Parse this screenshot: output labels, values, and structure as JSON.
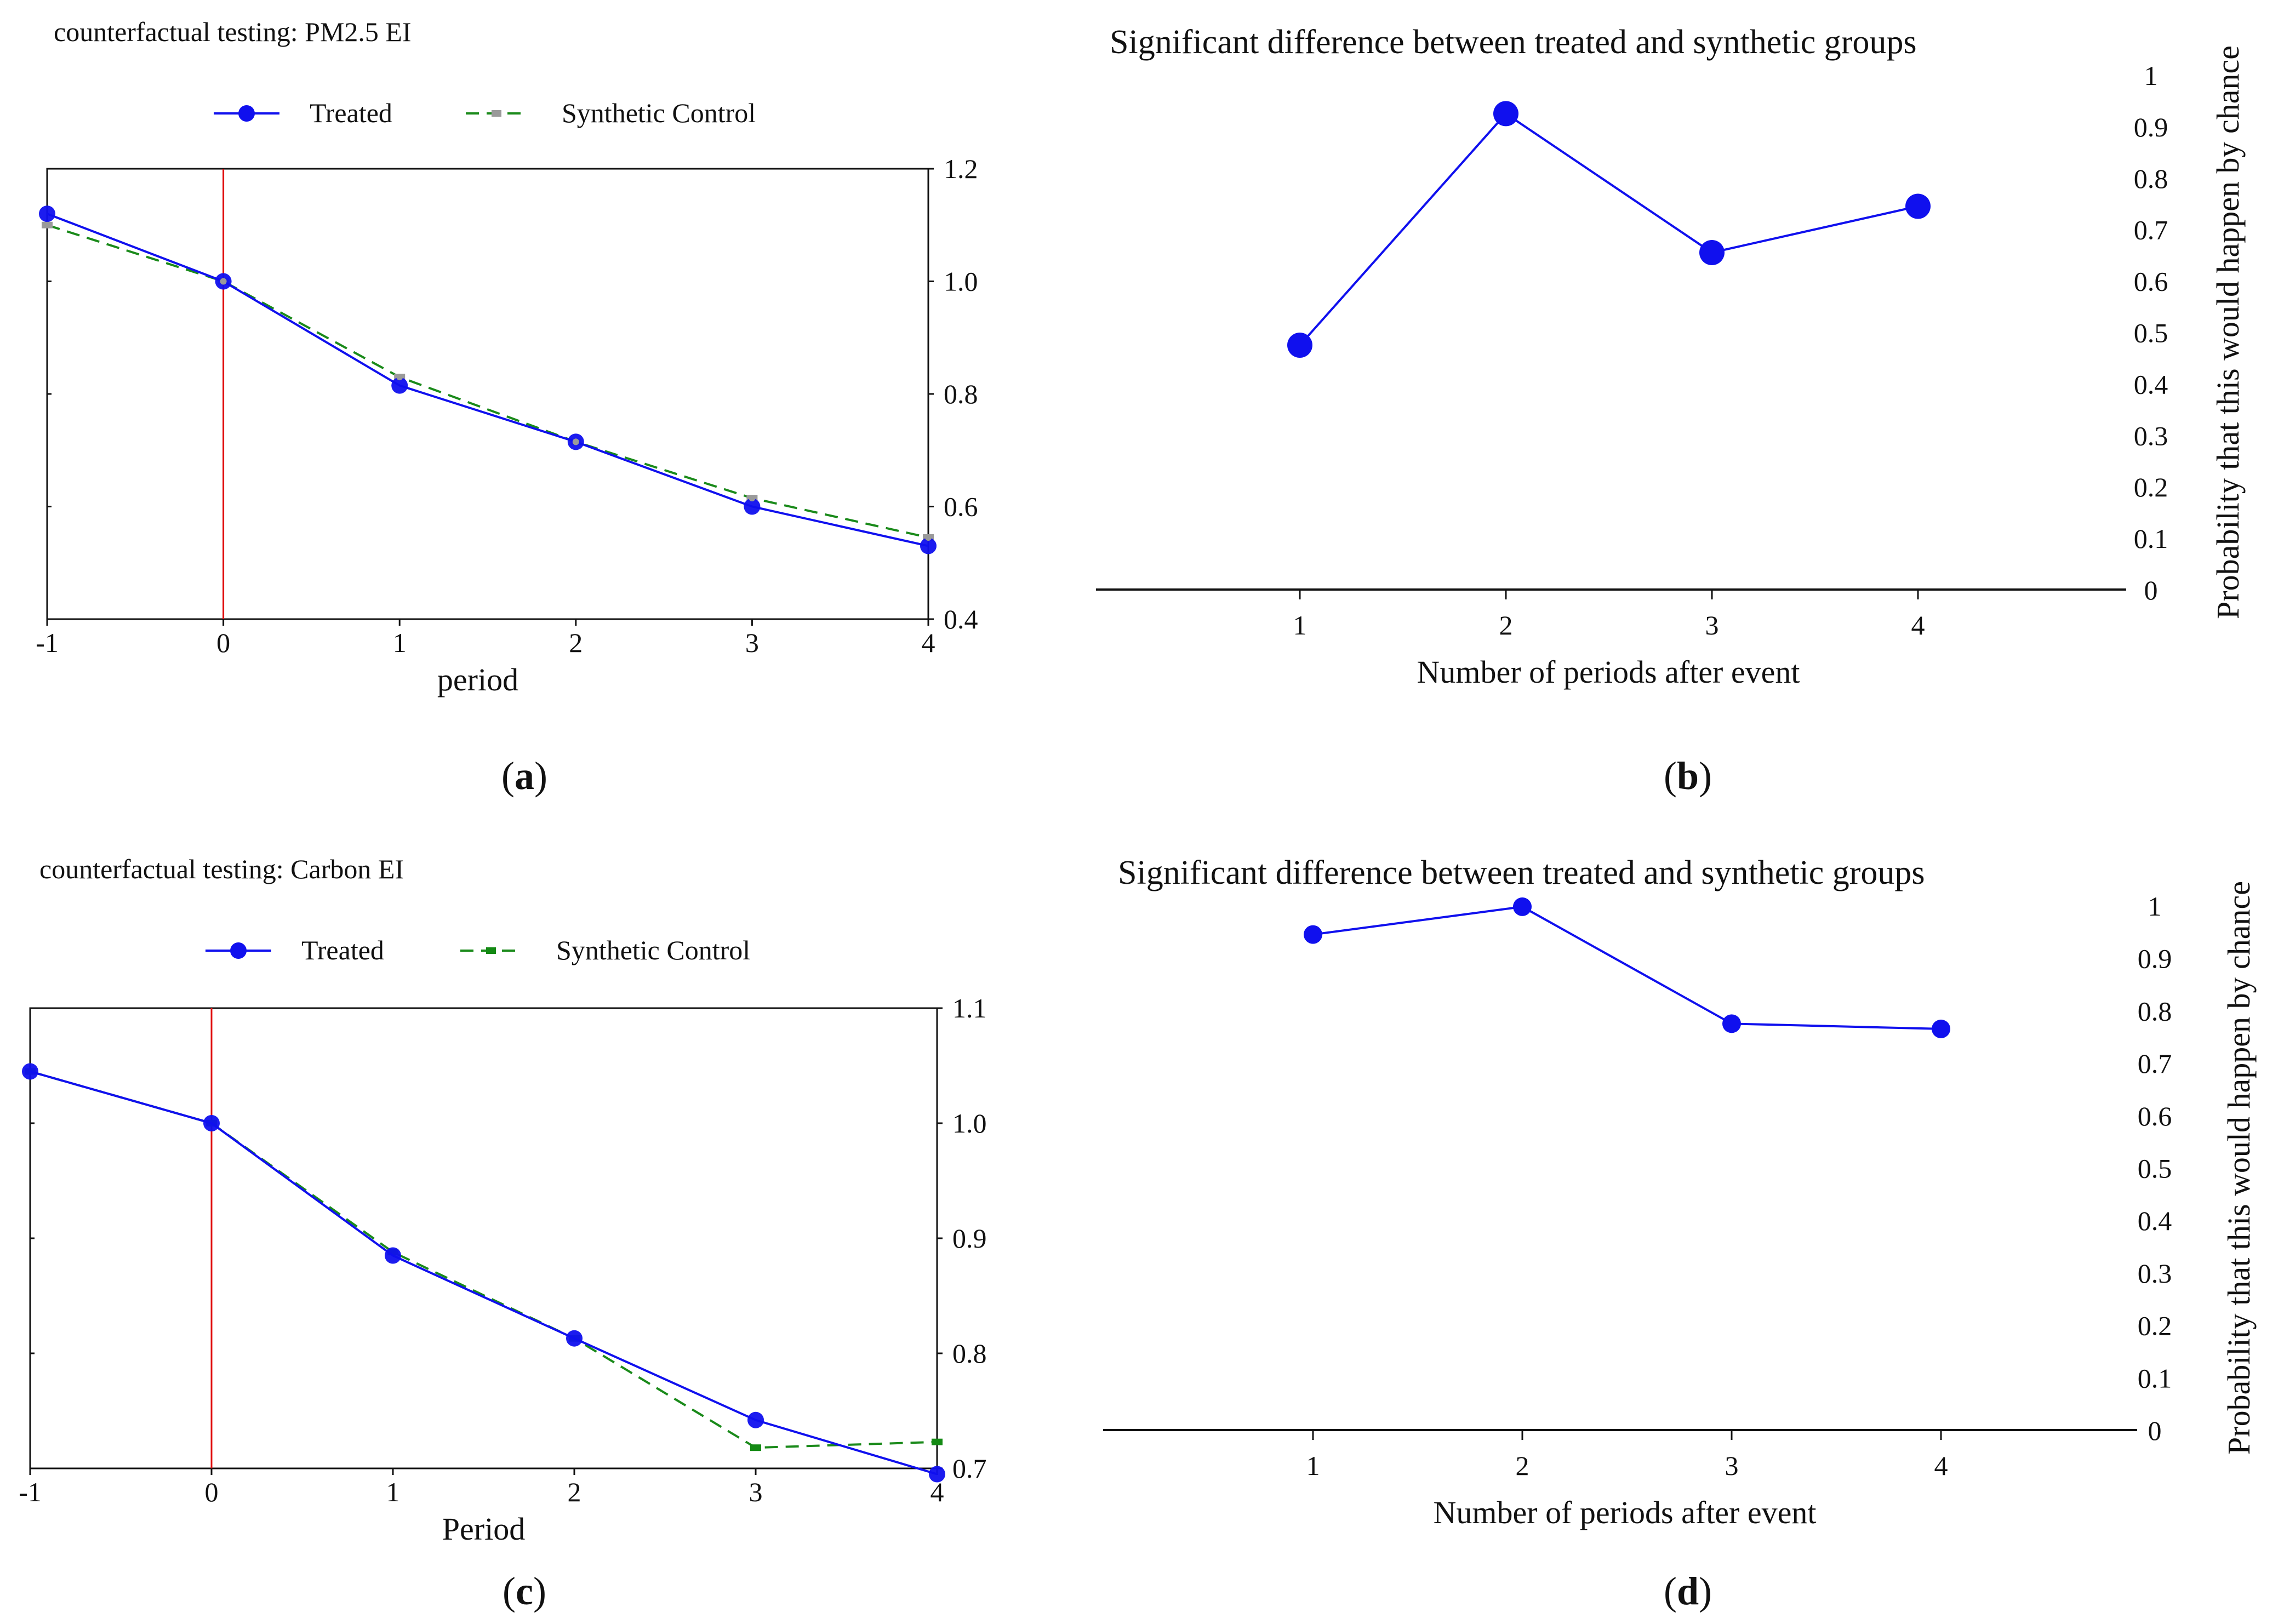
{
  "panels": {
    "a_label": "a",
    "b_label": "b",
    "c_label": "c",
    "d_label": "d"
  },
  "chart_data": [
    {
      "panel": "a",
      "type": "line",
      "title": "counterfactual testing: PM2.5 EI",
      "xlabel": "period",
      "ylabel": "",
      "x": [
        -1,
        0,
        1,
        2,
        3,
        4
      ],
      "xticks": [
        "-1",
        "0",
        "1",
        "2",
        "3",
        "4"
      ],
      "ylim": [
        0.4,
        1.2
      ],
      "yticks": [
        "1.2",
        "1.0",
        "0.8",
        "0.6",
        "0.4"
      ],
      "event_line_x": 0,
      "legend": "top",
      "series": [
        {
          "name": "Treated",
          "values": [
            1.12,
            1.0,
            0.815,
            0.715,
            0.6,
            0.53
          ],
          "color": "#1010ee"
        },
        {
          "name": "Synthetic Control",
          "values": [
            1.1,
            1.0,
            0.83,
            0.715,
            0.615,
            0.545
          ],
          "color": "#1a8a1a"
        }
      ]
    },
    {
      "panel": "b",
      "type": "line",
      "title": "Significant difference between treated and synthetic groups",
      "xlabel": "Number of periods after event",
      "ylabel": "Probability that this would happen by chance",
      "x": [
        1,
        2,
        3,
        4
      ],
      "xticks": [
        "1",
        "2",
        "3",
        "4"
      ],
      "ylim": [
        0,
        1
      ],
      "yticks": [
        "1",
        "0.9",
        "0.8",
        "0.7",
        "0.6",
        "0.5",
        "0.4",
        "0.3",
        "0.2",
        "0.1",
        "0"
      ],
      "series": [
        {
          "name": "",
          "values": [
            0.475,
            0.925,
            0.655,
            0.745
          ],
          "color": "#1010ee"
        }
      ]
    },
    {
      "panel": "c",
      "type": "line",
      "title": "counterfactual testing: Carbon EI",
      "xlabel": "Period",
      "ylabel": "",
      "x": [
        -1,
        0,
        1,
        2,
        3,
        4
      ],
      "xticks": [
        "-1",
        "0",
        "1",
        "2",
        "3",
        "4"
      ],
      "ylim": [
        0.7,
        1.1
      ],
      "yticks": [
        "1.1",
        "1.0",
        "0.9",
        "0.8",
        "0.7"
      ],
      "event_line_x": 0,
      "legend": "top",
      "series": [
        {
          "name": "Treated",
          "values": [
            1.045,
            1.0,
            0.885,
            0.813,
            0.742,
            0.695
          ],
          "color": "#1010ee"
        },
        {
          "name": "Synthetic Control",
          "values": [
            1.045,
            1.0,
            0.888,
            0.813,
            0.718,
            0.723
          ],
          "color": "#1a8a1a"
        }
      ]
    },
    {
      "panel": "d",
      "type": "line",
      "title": "Significant difference between treated and synthetic groups",
      "xlabel": "Number of periods after event",
      "ylabel": "Probability that this would happen by chance",
      "x": [
        1,
        2,
        3,
        4
      ],
      "xticks": [
        "1",
        "2",
        "3",
        "4"
      ],
      "ylim": [
        0,
        1
      ],
      "yticks": [
        "1",
        "0.9",
        "0.8",
        "0.7",
        "0.6",
        "0.5",
        "0.4",
        "0.3",
        "0.2",
        "0.1",
        "0"
      ],
      "series": [
        {
          "name": "",
          "values": [
            0.945,
            0.998,
            0.775,
            0.765
          ],
          "color": "#1010ee"
        }
      ]
    }
  ]
}
